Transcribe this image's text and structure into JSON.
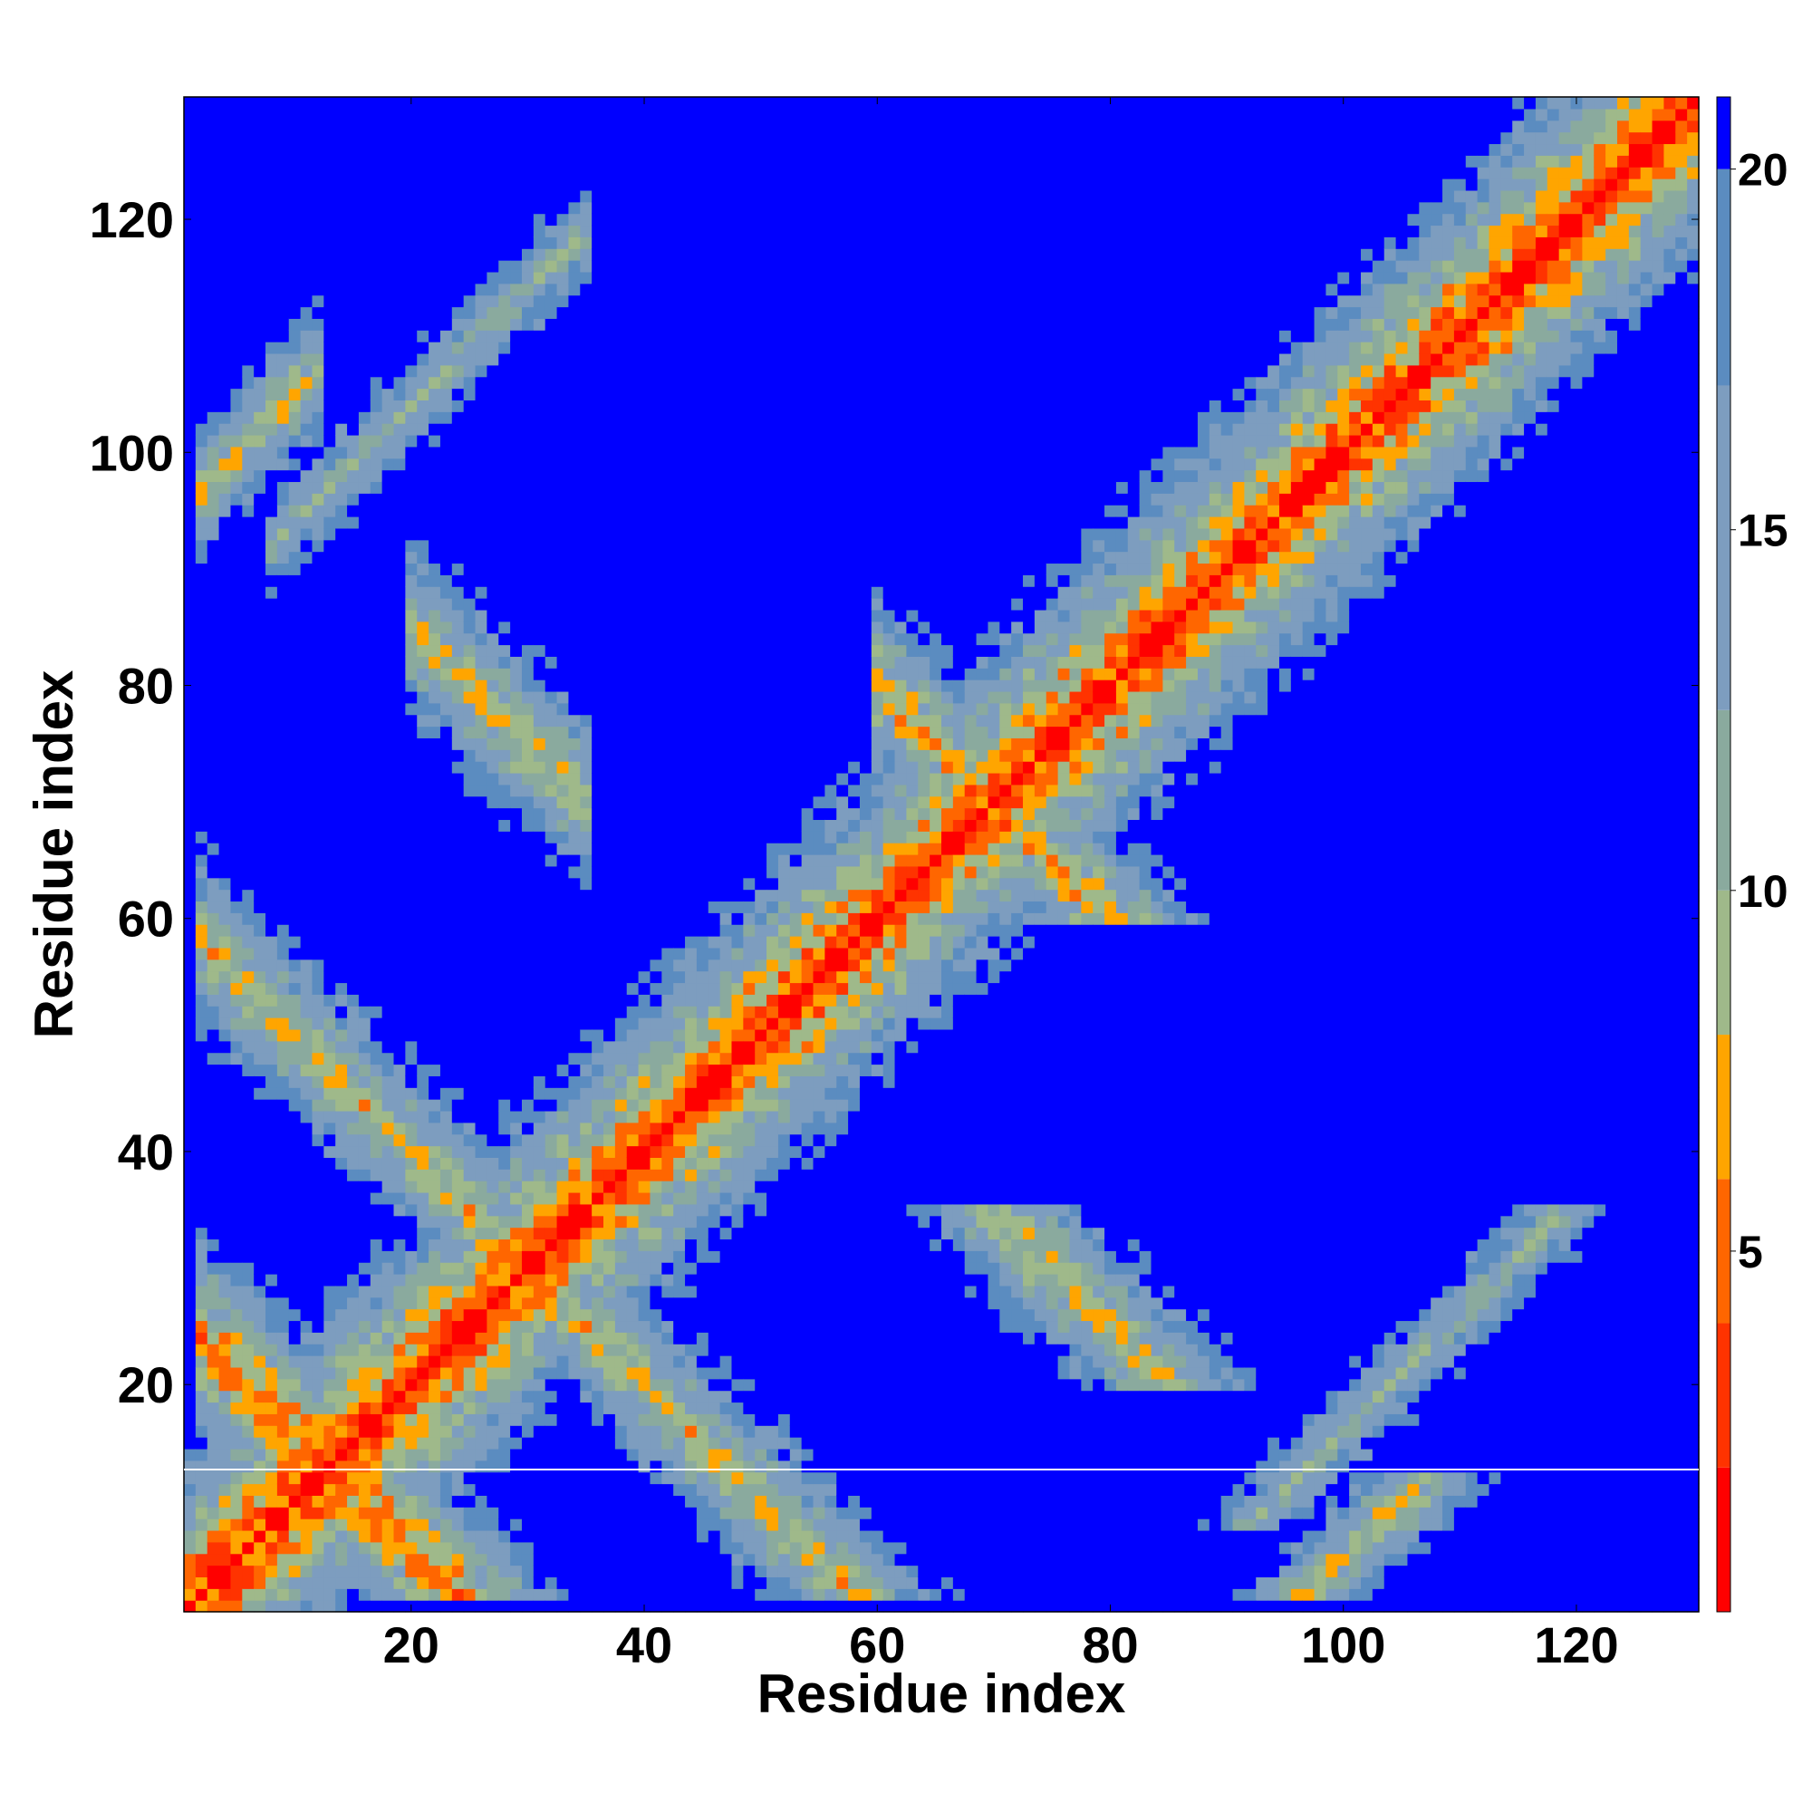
{
  "chart_data": {
    "type": "heatmap",
    "title": "",
    "xlabel": "Residue index",
    "ylabel": "Residue index",
    "n_residues": 130,
    "xlim": [
      0.5,
      130.5
    ],
    "ylim": [
      0.5,
      130.5
    ],
    "xticks": [
      20,
      40,
      60,
      80,
      100,
      120
    ],
    "yticks": [
      20,
      40,
      60,
      80,
      100,
      120
    ],
    "colorbar": {
      "ticks": [
        5,
        10,
        15,
        20
      ],
      "range": [
        0,
        21
      ],
      "colors": [
        {
          "max": 2,
          "color": "#ff0000"
        },
        {
          "max": 4,
          "color": "#ff3300"
        },
        {
          "max": 6,
          "color": "#ff6600"
        },
        {
          "max": 8,
          "color": "#ffa500"
        },
        {
          "max": 10,
          "color": "#9fb98a"
        },
        {
          "max": 12.5,
          "color": "#8aaa9e"
        },
        {
          "max": 17,
          "color": "#7d9dbf"
        },
        {
          "max": 20,
          "color": "#5b8cc0"
        },
        {
          "max": 999,
          "color": "#0000ff"
        }
      ]
    },
    "diagonal_value": 0,
    "features": [
      {
        "kind": "antidiagonal_band",
        "center_sum": 26,
        "range": [
          2,
          24
        ],
        "value": 5
      },
      {
        "kind": "antidiagonal_band",
        "center_sum": 60,
        "range": [
          2,
          26
        ],
        "value": 8
      },
      {
        "kind": "antidiagonal_band",
        "center_sum": 105,
        "range": [
          20,
          35
        ],
        "value": 8
      },
      {
        "kind": "antidiagonal_band",
        "center_sum": 69,
        "range": [
          55,
          66
        ],
        "value": 7
      },
      {
        "kind": "antidiagonal_band",
        "center_sum": 140,
        "range": [
          60,
          80
        ],
        "value": 7
      },
      {
        "kind": "parallel_band",
        "offset": 95,
        "range": [
          2,
          12
        ],
        "value": 8
      },
      {
        "kind": "parallel_band",
        "offset": 84,
        "range": [
          8,
          35
        ],
        "value": 11
      },
      {
        "kind": "parallel_band",
        "offset": -84,
        "range": [
          8,
          35
        ],
        "value": 11
      }
    ]
  }
}
